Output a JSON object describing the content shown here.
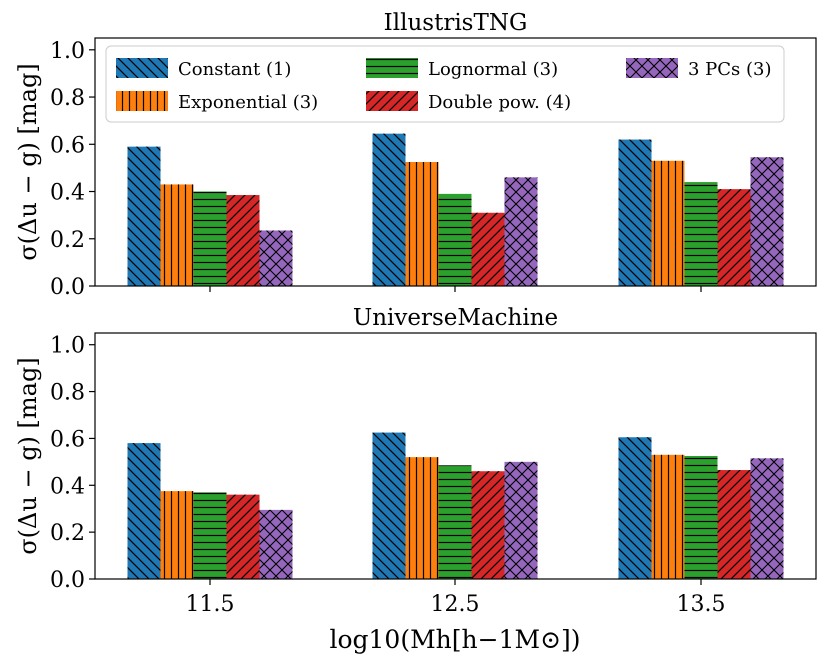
{
  "chart_data": [
    {
      "type": "bar",
      "title": "IllustrisTNG",
      "categories": [
        "11.5",
        "12.5",
        "13.5"
      ],
      "ylabel": "σ(Δu − g) [mag]",
      "ylim": [
        0,
        1.05
      ],
      "yticks": [
        "0.0",
        "0.2",
        "0.4",
        "0.6",
        "0.8",
        "1.0"
      ],
      "show_xticklabels": false,
      "legend": "top",
      "series": [
        {
          "name": "Constant (1)",
          "color": "#1f77b4",
          "hatch": "backslash",
          "values": [
            0.59,
            0.645,
            0.62
          ]
        },
        {
          "name": "Exponential (3)",
          "color": "#ff7f0e",
          "hatch": "vertical",
          "values": [
            0.43,
            0.525,
            0.53
          ]
        },
        {
          "name": "Lognormal (3)",
          "color": "#2ca02c",
          "hatch": "horizontal",
          "values": [
            0.4,
            0.39,
            0.44
          ]
        },
        {
          "name": "Double pow. (4)",
          "color": "#d62728",
          "hatch": "slash",
          "values": [
            0.385,
            0.31,
            0.41
          ]
        },
        {
          "name": "3 PCs (3)",
          "color": "#9467bd",
          "hatch": "cross",
          "values": [
            0.235,
            0.46,
            0.545
          ]
        }
      ]
    },
    {
      "type": "bar",
      "title": "UniverseMachine",
      "categories": [
        "11.5",
        "12.5",
        "13.5"
      ],
      "ylabel": "σ(Δu − g) [mag]",
      "xlabel": "log10(Mh[h−1M⊙])",
      "ylim": [
        0,
        1.05
      ],
      "yticks": [
        "0.0",
        "0.2",
        "0.4",
        "0.6",
        "0.8",
        "1.0"
      ],
      "show_xticklabels": true,
      "series": [
        {
          "name": "Constant (1)",
          "color": "#1f77b4",
          "hatch": "backslash",
          "values": [
            0.58,
            0.625,
            0.605
          ]
        },
        {
          "name": "Exponential (3)",
          "color": "#ff7f0e",
          "hatch": "vertical",
          "values": [
            0.375,
            0.52,
            0.53
          ]
        },
        {
          "name": "Lognormal (3)",
          "color": "#2ca02c",
          "hatch": "horizontal",
          "values": [
            0.37,
            0.485,
            0.525
          ]
        },
        {
          "name": "Double pow. (4)",
          "color": "#d62728",
          "hatch": "slash",
          "values": [
            0.36,
            0.46,
            0.465
          ]
        },
        {
          "name": "3 PCs (3)",
          "color": "#9467bd",
          "hatch": "cross",
          "values": [
            0.295,
            0.5,
            0.515
          ]
        }
      ]
    }
  ]
}
